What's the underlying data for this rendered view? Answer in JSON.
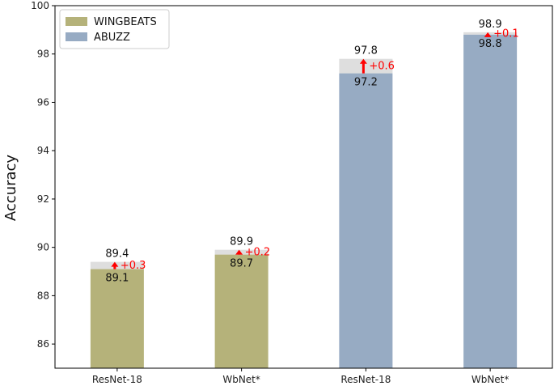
{
  "chart_data": {
    "type": "bar",
    "categories": [
      "ResNet-18",
      "WbNet*",
      "ResNet-18",
      "WbNet*"
    ],
    "series": [
      {
        "name": "WINGBEATS",
        "color": "#b5b27a",
        "category_index": [
          0,
          1
        ],
        "base": [
          89.1,
          89.7
        ],
        "improved": [
          89.4,
          89.9
        ],
        "base_labels": [
          "89.1",
          "89.7"
        ],
        "improved_labels": [
          "89.4",
          "89.9"
        ],
        "gain_labels": [
          "+0.3",
          "+0.2"
        ]
      },
      {
        "name": "ABUZZ",
        "color": "#97abc3",
        "category_index": [
          2,
          3
        ],
        "base": [
          97.2,
          98.8
        ],
        "improved": [
          97.8,
          98.9
        ],
        "base_labels": [
          "97.2",
          "98.8"
        ],
        "improved_labels": [
          "97.8",
          "98.9"
        ],
        "gain_labels": [
          "+0.6",
          "+0.1"
        ]
      }
    ],
    "improvement_color": "#dedede",
    "arrow_color": "#ff0000",
    "ylabel": "Accuracy",
    "xlabel": "",
    "ylim": [
      85,
      100
    ],
    "yticks": [
      86,
      88,
      90,
      92,
      94,
      96,
      98,
      100
    ],
    "grid": false,
    "legend_position": "top-left"
  }
}
